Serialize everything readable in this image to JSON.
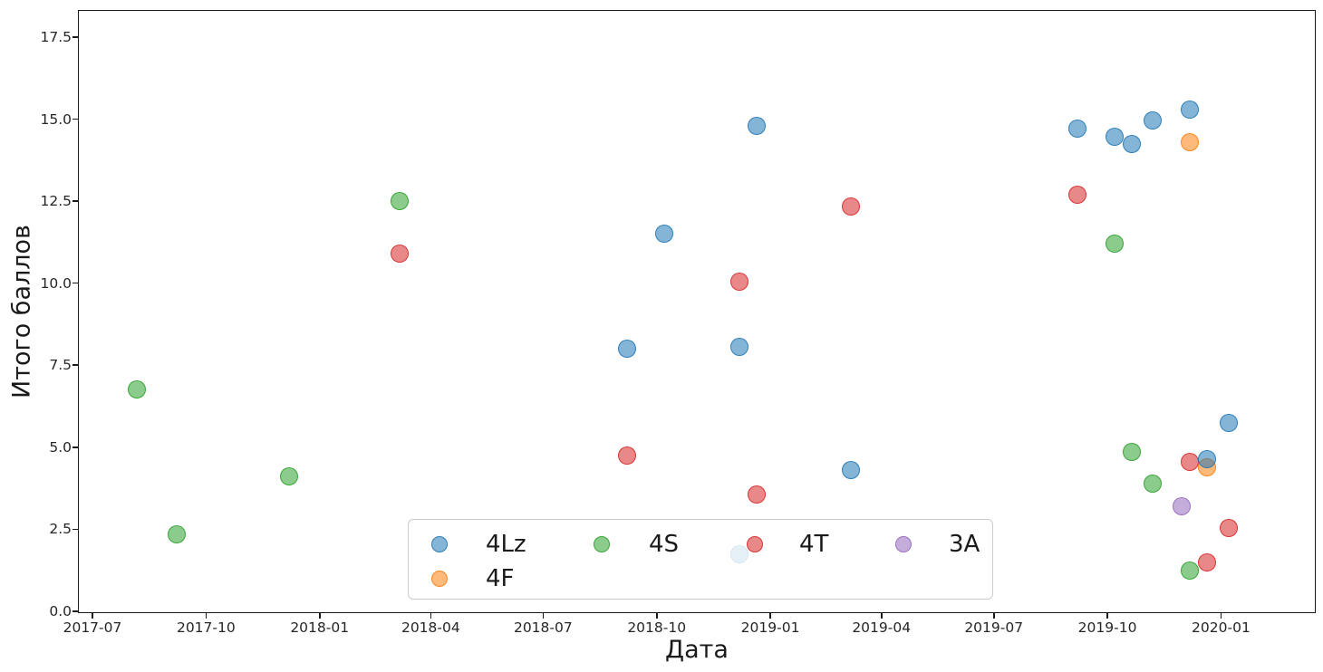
{
  "figure": {
    "background": "#ffffff",
    "text_color": "#262626"
  },
  "chart_data": {
    "type": "scatter",
    "title": "",
    "xlabel": "Дата",
    "ylabel": "Итого баллов",
    "x_tick_labels": [
      "2017-07",
      "2017-10",
      "2018-01",
      "2018-04",
      "2018-07",
      "2018-10",
      "2019-01",
      "2019-04",
      "2019-07",
      "2019-10",
      "2020-01"
    ],
    "y_tick_labels": [
      "0.0",
      "2.5",
      "5.0",
      "7.5",
      "10.0",
      "12.5",
      "15.0",
      "17.5"
    ],
    "y_ticks": [
      0.0,
      2.5,
      5.0,
      7.5,
      10.0,
      12.5,
      15.0,
      17.5
    ],
    "ylim": [
      0,
      18.3
    ],
    "x_range_dates": [
      "2017-06-20",
      "2020-03-17"
    ],
    "grid": false,
    "legend_position": "lower center inside plot, 4 columns x 2 rows",
    "series": [
      {
        "name": "4Lz",
        "color": "#1f77b4",
        "points": [
          [
            "2018-09-07",
            8.0
          ],
          [
            "2018-10-07",
            11.5
          ],
          [
            "2018-12-07",
            8.05
          ],
          [
            "2018-12-07",
            1.75
          ],
          [
            "2018-12-21",
            14.8
          ],
          [
            "2019-03-07",
            4.3
          ],
          [
            "2019-09-07",
            14.7
          ],
          [
            "2019-10-07",
            14.45
          ],
          [
            "2019-10-21",
            14.25
          ],
          [
            "2019-11-07",
            14.95
          ],
          [
            "2019-12-07",
            15.3
          ],
          [
            "2019-12-21",
            4.65
          ],
          [
            "2020-01-07",
            5.75
          ]
        ]
      },
      {
        "name": "4F",
        "color": "#ff7f0e",
        "points": [
          [
            "2019-12-07",
            14.3
          ],
          [
            "2019-12-21",
            4.4
          ]
        ]
      },
      {
        "name": "4S",
        "color": "#2ca02c",
        "points": [
          [
            "2017-08-06",
            6.75
          ],
          [
            "2017-09-07",
            2.35
          ],
          [
            "2017-12-07",
            4.1
          ],
          [
            "2018-03-07",
            12.5
          ],
          [
            "2019-10-07",
            11.2
          ],
          [
            "2019-10-21",
            4.85
          ],
          [
            "2019-11-07",
            3.9
          ],
          [
            "2019-12-07",
            1.25
          ]
        ]
      },
      {
        "name": "4T",
        "color": "#d62728",
        "points": [
          [
            "2018-03-07",
            10.9
          ],
          [
            "2018-09-07",
            4.75
          ],
          [
            "2018-12-07",
            10.05
          ],
          [
            "2018-12-21",
            3.55
          ],
          [
            "2019-03-07",
            12.35
          ],
          [
            "2019-09-07",
            12.7
          ],
          [
            "2019-12-07",
            4.55
          ],
          [
            "2019-12-21",
            1.5
          ],
          [
            "2020-01-07",
            2.55
          ]
        ]
      },
      {
        "name": "3A",
        "color": "#9467bd",
        "points": [
          [
            "2019-11-30",
            3.2
          ]
        ]
      }
    ]
  },
  "legend": {
    "row1_labels": [
      "4Lz",
      "4S",
      "4T",
      "3A"
    ],
    "row2_labels": [
      "4F"
    ]
  }
}
